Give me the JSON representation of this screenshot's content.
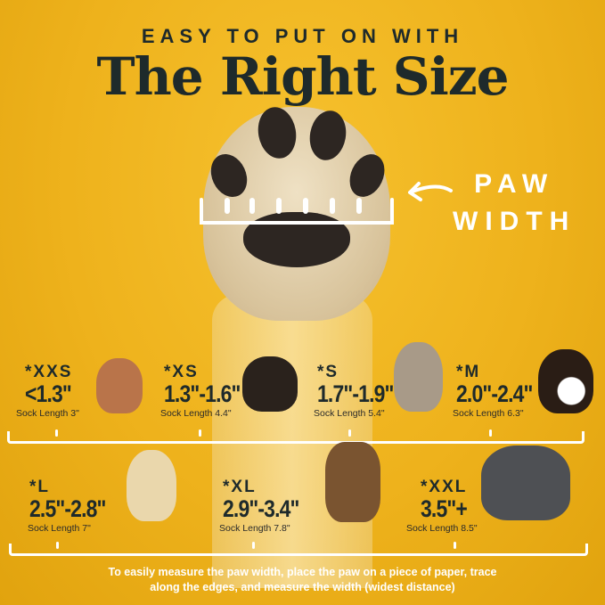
{
  "header": {
    "subtitle": "EASY TO PUT ON WITH",
    "title": "The Right Size"
  },
  "paw_label": {
    "line1": "PAW",
    "line2": "WIDTH",
    "arrow_icon": "arrow-left-icon"
  },
  "sizes": [
    {
      "label": "*XXS",
      "range": "<1.3\"",
      "sock": "Sock Length 3\"",
      "dog": "chihuahua"
    },
    {
      "label": "*XS",
      "range": "1.3\"-1.6\"",
      "sock": "Sock Length 4.4\"",
      "dog": "yorkshire-terrier"
    },
    {
      "label": "*S",
      "range": "1.7\"-1.9\"",
      "sock": "Sock Length 5.4\"",
      "dog": "french-bulldog"
    },
    {
      "label": "*M",
      "range": "2.0\"-2.4\"",
      "sock": "Sock Length 6.3\"",
      "dog": "bernese-mountain-dog"
    },
    {
      "label": "*L",
      "range": "2.5\"-2.8\"",
      "sock": "Sock Length 7\"",
      "dog": "golden-retriever"
    },
    {
      "label": "*XL",
      "range": "2.9\"-3.4\"",
      "sock": "Sock Length 7.8\"",
      "dog": "german-shepherd"
    },
    {
      "label": "*XXL",
      "range": "3.5\"+",
      "sock": "Sock Length 8.5\"",
      "dog": "great-dane"
    }
  ],
  "note": {
    "line1": "To easily measure the paw width, place the paw on a piece of paper, trace",
    "line2": "along the edges, and measure the width (widest distance)"
  },
  "colors": {
    "background": "#eeb21c",
    "text": "#1e2a2b",
    "accent": "#ffffff"
  }
}
